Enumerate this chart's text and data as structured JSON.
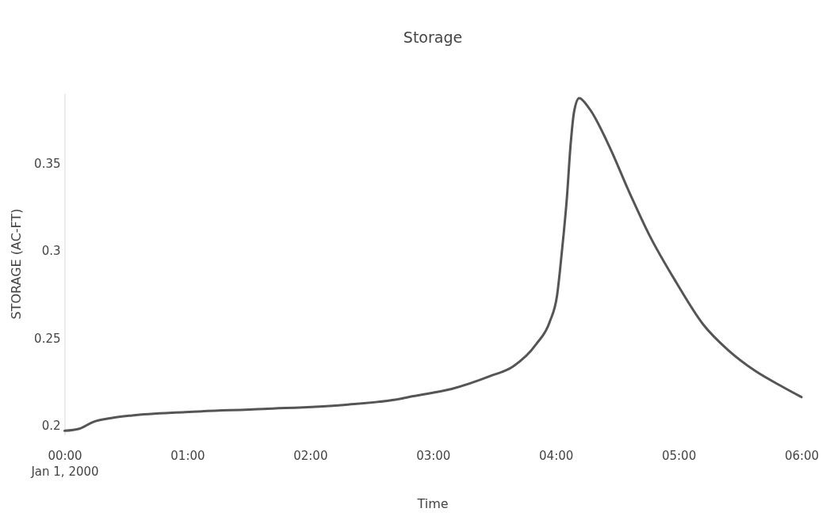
{
  "chart_data": {
    "type": "line",
    "title": "Storage",
    "xlabel": "Time",
    "ylabel": "STORAGE (AC-FT)",
    "x": [
      0,
      0.12,
      0.23,
      0.38,
      0.55,
      0.98,
      1.62,
      2.27,
      2.74,
      2.83,
      3.15,
      3.47,
      3.65,
      3.84,
      3.95,
      4.01,
      4.05,
      4.09,
      4.12,
      4.15,
      4.19,
      4.27,
      4.44,
      4.59,
      4.76,
      4.98,
      5.2,
      5.41,
      5.62,
      5.84,
      6
    ],
    "series": [
      {
        "color": "#555555",
        "values": [
          0.1971,
          0.1983,
          0.2021,
          0.2044,
          0.2059,
          0.2078,
          0.2096,
          0.2119,
          0.2155,
          0.2168,
          0.221,
          0.2285,
          0.2338,
          0.2466,
          0.2594,
          0.2745,
          0.3001,
          0.3303,
          0.3605,
          0.3801,
          0.3873,
          0.3816,
          0.359,
          0.3348,
          0.3092,
          0.282,
          0.2579,
          0.2428,
          0.2315,
          0.2225,
          0.2164
        ]
      }
    ],
    "xlim": [
      0,
      6
    ],
    "xticks": [
      {
        "value": 0,
        "label": "00:00\nJan 1, 2000"
      },
      {
        "value": 1,
        "label": "01:00"
      },
      {
        "value": 2,
        "label": "02:00"
      },
      {
        "value": 3,
        "label": "03:00"
      },
      {
        "value": 4,
        "label": "04:00"
      },
      {
        "value": 5,
        "label": "05:00"
      },
      {
        "value": 6,
        "label": "06:00"
      }
    ],
    "ylim": [
      0.195,
      0.39
    ],
    "yticks": [
      0.2,
      0.25,
      0.3,
      0.35
    ],
    "grid": false,
    "line_style": "solid",
    "marker": "none"
  }
}
